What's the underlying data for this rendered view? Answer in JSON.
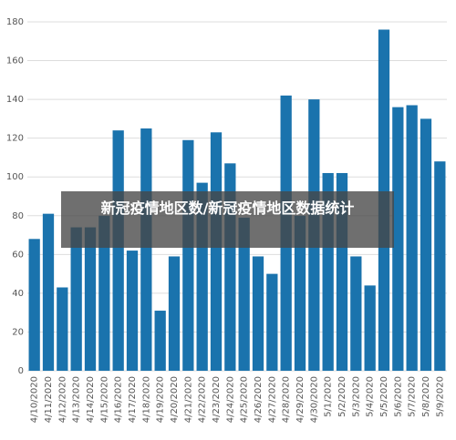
{
  "chart_data": {
    "type": "bar",
    "title": "新冠疫情地区数/新冠疫情地区数据统计",
    "categories": [
      "4/10/2020",
      "4/11/2020",
      "4/12/2020",
      "4/13/2020",
      "4/14/2020",
      "4/15/2020",
      "4/16/2020",
      "4/17/2020",
      "4/18/2020",
      "4/19/2020",
      "4/20/2020",
      "4/21/2020",
      "4/22/2020",
      "4/23/2020",
      "4/24/2020",
      "4/25/2020",
      "4/26/2020",
      "4/27/2020",
      "4/28/2020",
      "4/29/2020",
      "4/30/2020",
      "5/1/2020",
      "5/2/2020",
      "5/3/2020",
      "5/4/2020",
      "5/5/2020",
      "5/6/2020",
      "5/7/2020",
      "5/8/2020",
      "5/9/2020"
    ],
    "values": [
      68,
      81,
      43,
      74,
      74,
      80,
      124,
      62,
      125,
      31,
      59,
      119,
      97,
      123,
      107,
      79,
      59,
      50,
      142,
      80,
      140,
      102,
      102,
      59,
      44,
      176,
      136,
      137,
      130,
      108
    ],
    "color": "#1a73ad",
    "ylim": [
      0,
      180
    ],
    "yticks": [
      0,
      20,
      40,
      60,
      80,
      100,
      120,
      140,
      160,
      180
    ],
    "grid": true
  }
}
